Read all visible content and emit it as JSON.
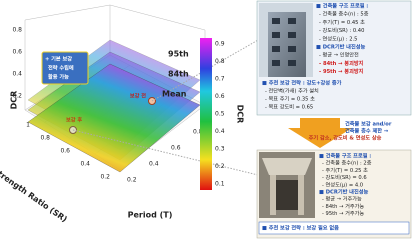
{
  "plot": {
    "z_label": "DCR",
    "x_label": "Period (T)",
    "y_label": "Strength Ratio (SR)",
    "surface_labels": [
      "95th",
      "84th",
      "Mean"
    ],
    "point_labels": [
      "보강 전",
      "보강 후"
    ],
    "callout": [
      "+ 기본 보강",
      "전략 수립에",
      "활용 가능"
    ],
    "z_ticks": [
      "0.8",
      "0.6",
      "0.4",
      "0.2"
    ],
    "x_ticks": [
      "0.2",
      "0.4",
      "0.6",
      "0.8"
    ],
    "y_ticks": [
      "1",
      "0.8",
      "0.6",
      "0.4",
      "0.2"
    ]
  },
  "colorbar": {
    "label": "DCR",
    "ticks": [
      "0.9",
      "0.8",
      "0.7",
      "0.6",
      "0.5",
      "0.4",
      "0.3",
      "0.2",
      "0.1"
    ]
  },
  "before": {
    "lines": [
      "■ 건축물 구조 프로필 :",
      "- 건축물 층수(n) : 5층",
      "- 주기(T) = 0.45 초",
      "- 강도비(SR) : 0.40",
      "- 연성도(μ) : 2.5",
      "■ DCR기반 내진성능",
      "- 평균 → 인명안전",
      "- 84th → 붕괴방지",
      "- 95th → 붕괴방지"
    ],
    "strategy": [
      "■ 추천 보강 전략 : 강도+강성 증가",
      "- 전단벽(가새) 추가 설치",
      "- 목표 주기 = 0.35 초",
      "- 목표 강도비 = 0.65"
    ]
  },
  "transition": [
    "건축물 보강 and/or",
    "건축물 층수 제한 →",
    "주기 감소, 강도비 & 연성도 상승"
  ],
  "after": {
    "lines": [
      "■ 건축물 구조 프로필 :",
      "- 건축물 층수(n) : 2층",
      "- 주기(T) = 0.25 초",
      "- 강도비(SR) = 0.6",
      "- 연성도(μ) = 4.0",
      "■ DCR기반 내진성능",
      "- 평균 → 거주가능",
      "- 84th → 거주가능",
      "- 95th → 거주가능"
    ],
    "strategy": "■ 추천 보강 전략 : 보강 필요 없음"
  }
}
